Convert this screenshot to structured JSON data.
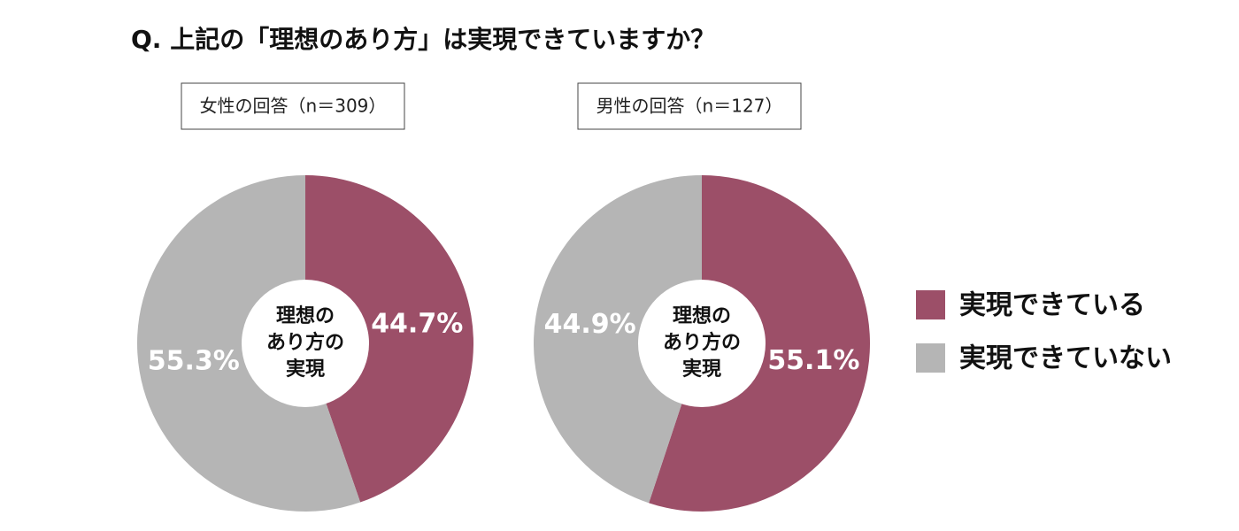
{
  "title": "Q. 上記の「理想のあり方」は実現できていますか？",
  "chart_data": [
    {
      "type": "donut",
      "subtitle": "女性の回答（n＝309）",
      "center_label": [
        "理想の",
        "あり方の",
        "実現"
      ],
      "categories": [
        "実現できている",
        "実現できていない"
      ],
      "values": [
        44.7,
        55.3
      ],
      "value_labels": [
        "44.7%",
        "55.3%"
      ],
      "colors": [
        "#9c4f68",
        "#b5b5b5"
      ]
    },
    {
      "type": "donut",
      "subtitle": "男性の回答（n＝127）",
      "center_label": [
        "理想の",
        "あり方の",
        "実現"
      ],
      "categories": [
        "実現できている",
        "実現できていない"
      ],
      "values": [
        55.1,
        44.9
      ],
      "value_labels": [
        "55.1%",
        "44.9%"
      ],
      "colors": [
        "#9c4f68",
        "#b5b5b5"
      ]
    }
  ]
}
